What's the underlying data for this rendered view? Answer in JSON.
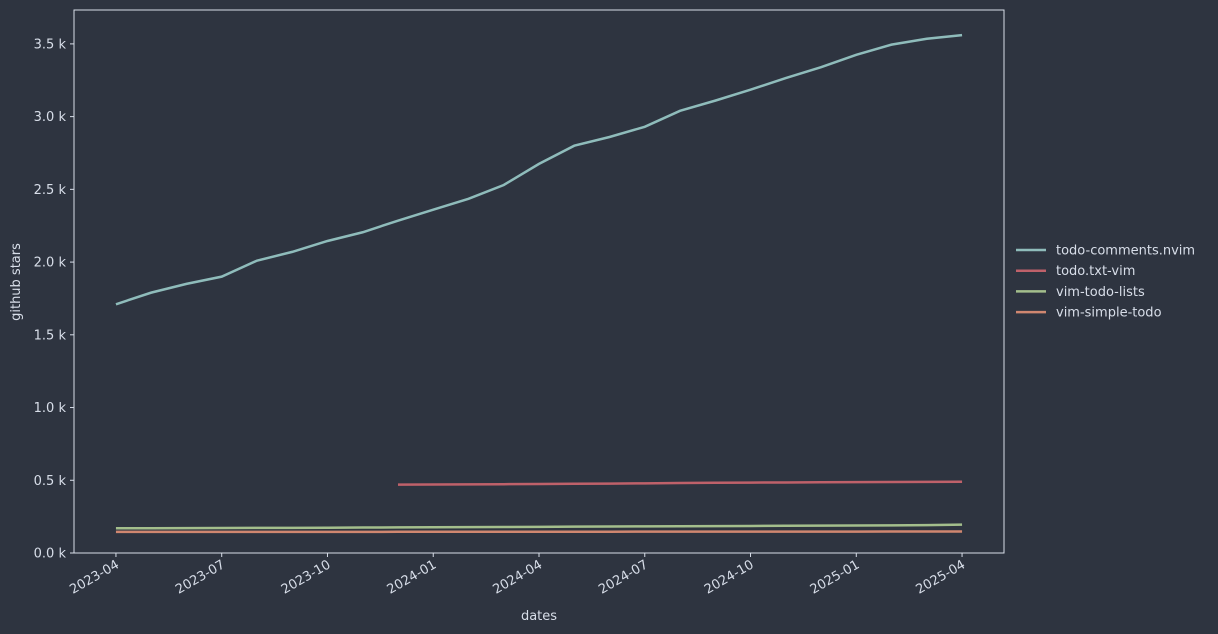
{
  "chart_data": {
    "type": "line",
    "xlabel": "dates",
    "ylabel": "github stars",
    "x": [
      "2023-04",
      "2023-05",
      "2023-06",
      "2023-07",
      "2023-08",
      "2023-09",
      "2023-10",
      "2023-11",
      "2023-12",
      "2024-01",
      "2024-02",
      "2024-03",
      "2024-04",
      "2024-05",
      "2024-06",
      "2024-07",
      "2024-08",
      "2024-09",
      "2024-10",
      "2024-11",
      "2024-12",
      "2025-01",
      "2025-02",
      "2025-03",
      "2025-04"
    ],
    "series": [
      {
        "name": "todo-comments.nvim",
        "color": "#8fbcbb",
        "values": [
          1710,
          1790,
          1850,
          1900,
          2010,
          2070,
          2145,
          2205,
          2285,
          2360,
          2435,
          2530,
          2675,
          2800,
          2860,
          2930,
          3040,
          3110,
          3185,
          3265,
          3340,
          3425,
          3495,
          3535,
          3560
        ]
      },
      {
        "name": "todo.txt-vim",
        "color": "#bf616a",
        "values": [
          null,
          null,
          null,
          null,
          null,
          null,
          null,
          null,
          470,
          471,
          472,
          473,
          474,
          476,
          477,
          479,
          481,
          483,
          484,
          485,
          486,
          487,
          488,
          489,
          490
        ]
      },
      {
        "name": "vim-todo-lists",
        "color": "#a3be8c",
        "values": [
          170,
          170,
          171,
          172,
          173,
          173,
          174,
          175,
          176,
          177,
          178,
          179,
          180,
          181,
          182,
          183,
          184,
          185,
          186,
          187,
          188,
          189,
          190,
          192,
          195
        ]
      },
      {
        "name": "vim-simple-todo",
        "color": "#d08770",
        "values": [
          145,
          145,
          145,
          145,
          145,
          145,
          145,
          145,
          146,
          146,
          146,
          146,
          146,
          146,
          146,
          147,
          147,
          147,
          147,
          147,
          147,
          147,
          148,
          148,
          148
        ]
      }
    ],
    "ylim": [
      0,
      3733
    ],
    "yticks": [
      {
        "value": 0,
        "label": "0.0 k"
      },
      {
        "value": 500,
        "label": "0.5 k"
      },
      {
        "value": 1000,
        "label": "1.0 k"
      },
      {
        "value": 1500,
        "label": "1.5 k"
      },
      {
        "value": 2000,
        "label": "2.0 k"
      },
      {
        "value": 2500,
        "label": "2.5 k"
      },
      {
        "value": 3000,
        "label": "3.0 k"
      },
      {
        "value": 3500,
        "label": "3.5 k"
      }
    ],
    "xticks": [
      "2023-04",
      "2023-07",
      "2023-10",
      "2024-01",
      "2024-04",
      "2024-07",
      "2024-10",
      "2025-01",
      "2025-04"
    ],
    "legend": "right"
  }
}
